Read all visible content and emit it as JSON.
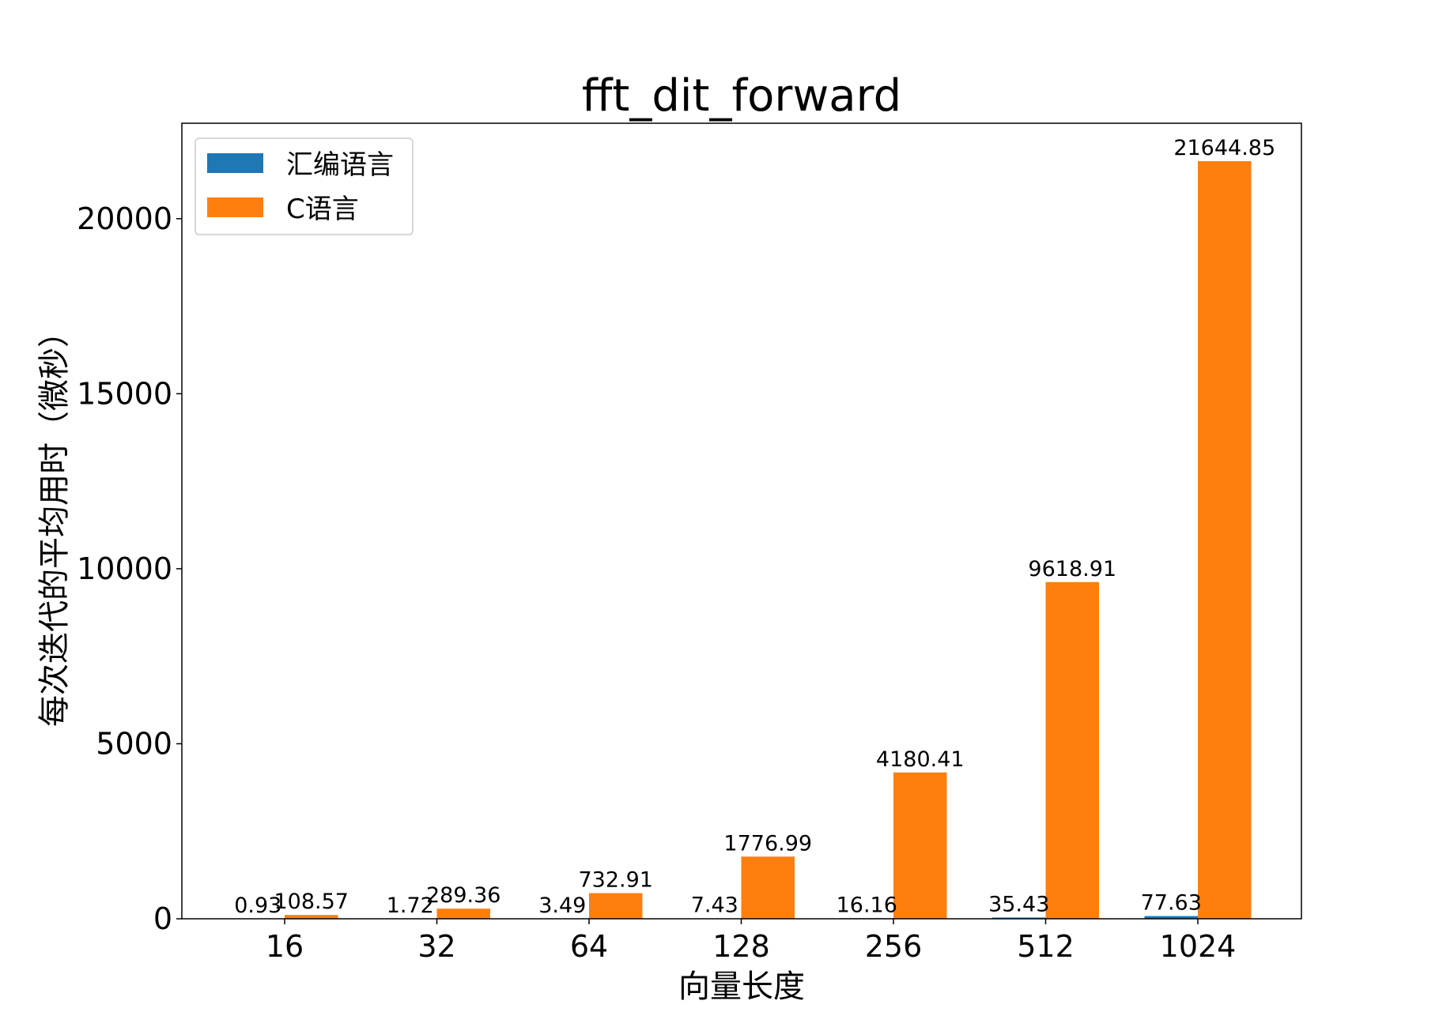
{
  "chart_data": {
    "type": "bar",
    "title": "fft_dit_forward",
    "xlabel": "向量长度",
    "ylabel": "每次迭代的平均用时（微秒）",
    "categories": [
      "16",
      "32",
      "64",
      "128",
      "256",
      "512",
      "1024"
    ],
    "series": [
      {
        "name": "汇编语言",
        "color": "#1f77b4",
        "values": [
          0.93,
          1.72,
          3.49,
          7.43,
          16.16,
          35.43,
          77.63
        ]
      },
      {
        "name": "C语言",
        "color": "#ff7f0e",
        "values": [
          108.57,
          289.36,
          732.91,
          1776.99,
          4180.41,
          9618.91,
          21644.85
        ]
      }
    ],
    "yticks": [
      0,
      5000,
      10000,
      15000,
      20000
    ],
    "ylim": [
      0,
      22727
    ],
    "grid": false,
    "legend": "top-left"
  }
}
